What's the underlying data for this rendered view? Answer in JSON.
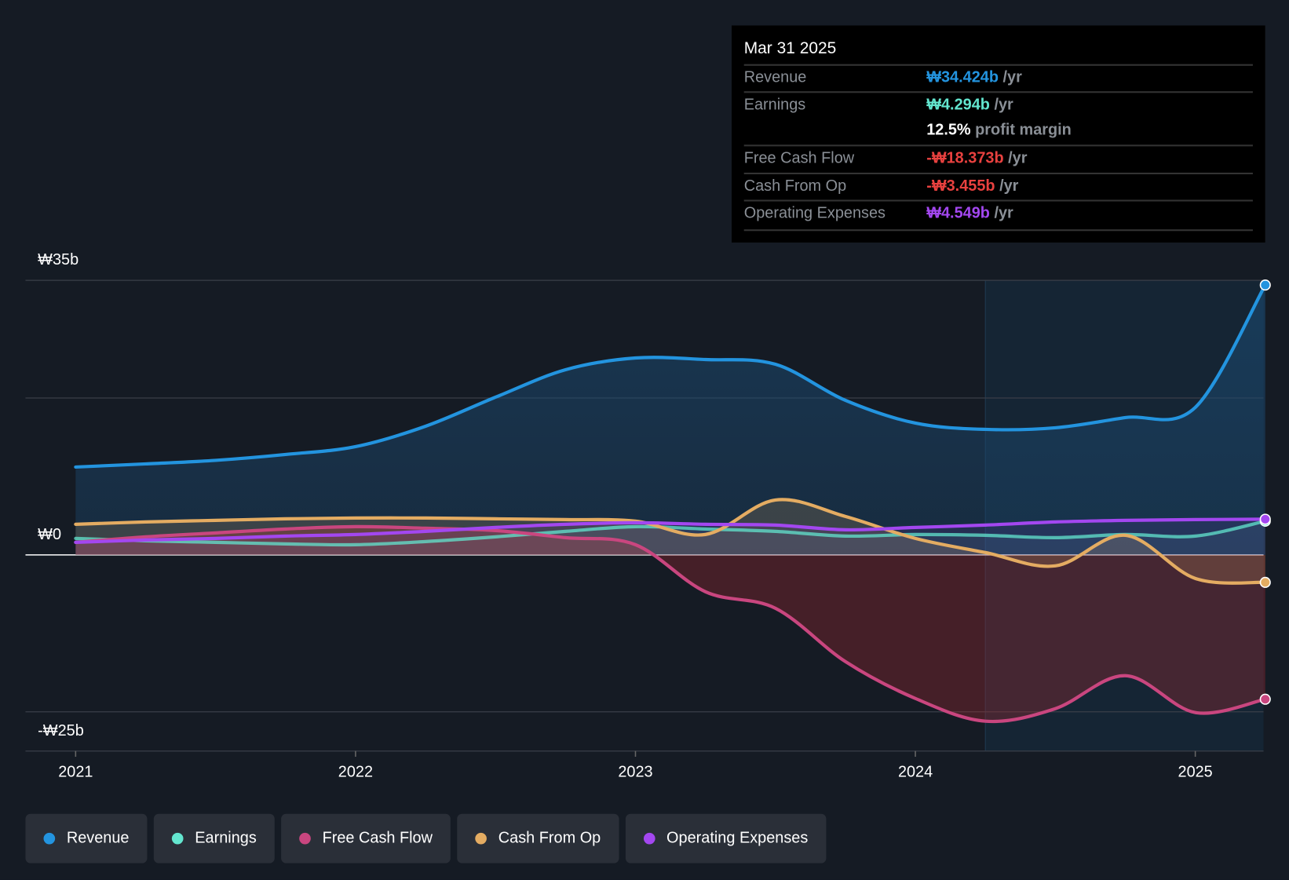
{
  "tooltip": {
    "date": "Mar 31 2025",
    "rows": [
      {
        "label": "Revenue",
        "value": "₩34.424b",
        "unit": " /yr",
        "color": "#2394df"
      },
      {
        "label": "Earnings",
        "value": "₩4.294b",
        "unit": " /yr",
        "color": "#63e6cf"
      },
      {
        "label": "",
        "value": "12.5%",
        "unit": " profit margin",
        "color": "#ffffff"
      },
      {
        "label": "Free Cash Flow",
        "value": "-₩18.373b",
        "unit": " /yr",
        "color": "#e8413f"
      },
      {
        "label": "Cash From Op",
        "value": "-₩3.455b",
        "unit": " /yr",
        "color": "#e8413f"
      },
      {
        "label": "Operating Expenses",
        "value": "₩4.549b",
        "unit": " /yr",
        "color": "#a347f0"
      }
    ]
  },
  "chart_data": {
    "type": "line",
    "title": "",
    "xlabel": "",
    "ylabel": "",
    "ylim": [
      -25,
      35
    ],
    "xlim": [
      2020.9,
      2025.25
    ],
    "y_ticks": [
      {
        "value": 35,
        "label": "₩35b"
      },
      {
        "value": 0,
        "label": "₩0"
      },
      {
        "value": -25,
        "label": "-₩25b"
      }
    ],
    "gridlines": [
      35,
      20,
      0,
      -20,
      -25
    ],
    "x_ticks": [
      {
        "value": 2021,
        "label": "2021"
      },
      {
        "value": 2022,
        "label": "2022"
      },
      {
        "value": 2023,
        "label": "2023"
      },
      {
        "value": 2024,
        "label": "2024"
      },
      {
        "value": 2025,
        "label": "2025"
      }
    ],
    "highlight_from": 2024.25,
    "x": [
      2021,
      2021.25,
      2021.5,
      2021.75,
      2022,
      2022.25,
      2022.5,
      2022.75,
      2023,
      2023.25,
      2023.5,
      2023.75,
      2024,
      2024.25,
      2024.5,
      2024.75,
      2025,
      2025.25
    ],
    "series": [
      {
        "name": "Revenue",
        "color": "#2394df",
        "values": [
          11.2,
          11.6,
          12.05,
          12.8,
          13.8,
          16.4,
          20.1,
          23.6,
          25.1,
          24.9,
          24.3,
          19.7,
          16.8,
          16.0,
          16.2,
          17.5,
          18.8,
          34.4
        ]
      },
      {
        "name": "Earnings",
        "color": "#63e6cf",
        "values": [
          2.1,
          1.8,
          1.6,
          1.4,
          1.3,
          1.7,
          2.3,
          3.0,
          3.6,
          3.3,
          3.0,
          2.4,
          2.6,
          2.5,
          2.2,
          2.6,
          2.4,
          4.3
        ]
      },
      {
        "name": "Free Cash Flow",
        "color": "#c9467f",
        "values": [
          1.6,
          2.3,
          2.8,
          3.3,
          3.6,
          3.4,
          3.1,
          2.2,
          1.3,
          -4.7,
          -6.8,
          -13.6,
          -18.3,
          -21.2,
          -19.6,
          -15.4,
          -20.1,
          -18.4
        ]
      },
      {
        "name": "Cash From Op",
        "color": "#e4ac62",
        "values": [
          3.9,
          4.2,
          4.4,
          4.6,
          4.7,
          4.7,
          4.6,
          4.5,
          4.3,
          2.6,
          7.0,
          4.9,
          2.1,
          0.3,
          -1.4,
          2.5,
          -3.0,
          -3.5
        ]
      },
      {
        "name": "Operating Expenses",
        "color": "#a347f0",
        "values": [
          1.6,
          1.9,
          2.1,
          2.4,
          2.6,
          3.0,
          3.5,
          3.9,
          4.1,
          3.9,
          3.8,
          3.2,
          3.5,
          3.8,
          4.2,
          4.4,
          4.5,
          4.55
        ]
      }
    ]
  },
  "legend": [
    {
      "label": "Revenue",
      "color": "#2394df"
    },
    {
      "label": "Earnings",
      "color": "#63e6cf"
    },
    {
      "label": "Free Cash Flow",
      "color": "#c9467f"
    },
    {
      "label": "Cash From Op",
      "color": "#e4ac62"
    },
    {
      "label": "Operating Expenses",
      "color": "#a347f0"
    }
  ]
}
